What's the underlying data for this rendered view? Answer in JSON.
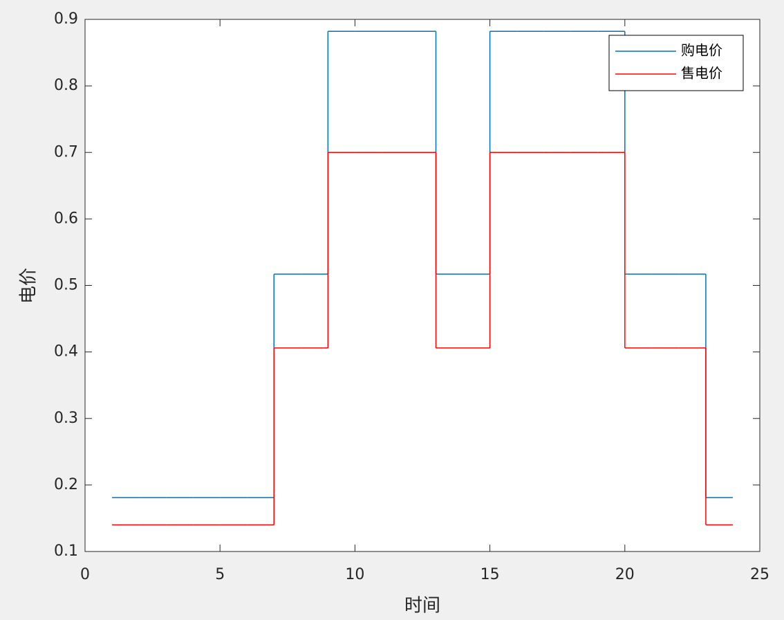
{
  "chart_data": {
    "type": "stairs",
    "xlabel": "时间",
    "ylabel": "电价",
    "x": [
      1,
      2,
      3,
      4,
      5,
      6,
      7,
      8,
      9,
      10,
      11,
      12,
      13,
      14,
      15,
      16,
      17,
      18,
      19,
      20,
      21,
      22,
      23,
      24
    ],
    "series": [
      {
        "name": "购电价",
        "color": "#0072bd",
        "values": [
          0.181,
          0.181,
          0.181,
          0.181,
          0.181,
          0.181,
          0.517,
          0.517,
          0.882,
          0.882,
          0.882,
          0.882,
          0.517,
          0.517,
          0.882,
          0.882,
          0.882,
          0.882,
          0.882,
          0.517,
          0.517,
          0.517,
          0.181,
          0.181
        ]
      },
      {
        "name": "售电价",
        "color": "#ff0000",
        "values": [
          0.14,
          0.14,
          0.14,
          0.14,
          0.14,
          0.14,
          0.406,
          0.406,
          0.7,
          0.7,
          0.7,
          0.7,
          0.406,
          0.406,
          0.7,
          0.7,
          0.7,
          0.7,
          0.7,
          0.406,
          0.406,
          0.406,
          0.14,
          0.14
        ]
      }
    ],
    "xlim": [
      0,
      25
    ],
    "xticks": [
      0,
      5,
      10,
      15,
      20,
      25
    ],
    "ylim": [
      0.1,
      0.9
    ],
    "yticks": [
      0.1,
      0.2,
      0.3,
      0.4,
      0.5,
      0.6,
      0.7,
      0.8,
      0.9
    ],
    "legend": "northeast"
  }
}
